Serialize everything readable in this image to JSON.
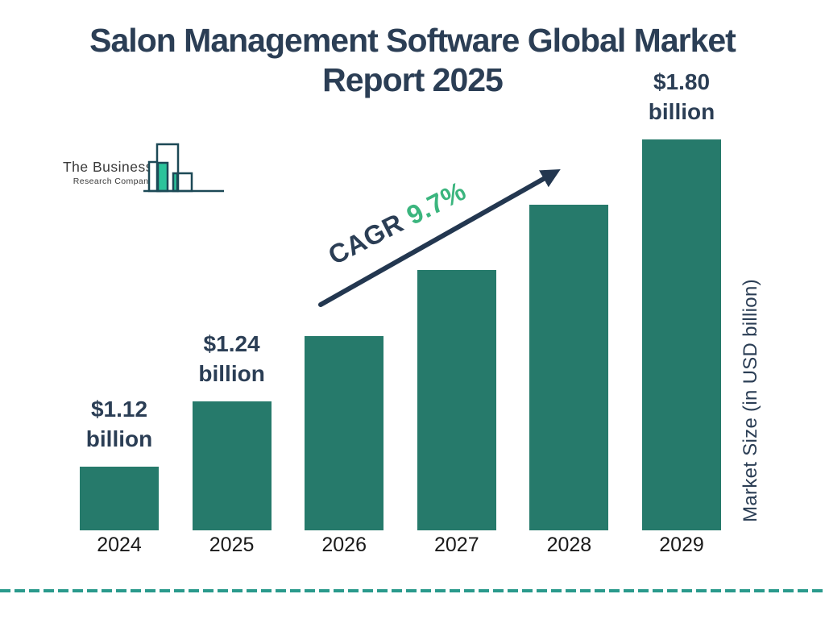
{
  "title": {
    "line1": "Salon Management Software Global Market",
    "line2": "Report 2025"
  },
  "logo": {
    "line1": "The Business",
    "line2": "Research Company"
  },
  "cagr": {
    "label": "CAGR",
    "value": "9.7%"
  },
  "axis": {
    "y_label": "Market Size (in USD billion)"
  },
  "colors": {
    "title_navy": "#2b3e55",
    "bar_teal": "#267a6b",
    "cagr_green": "#3bb57e",
    "arrow_navy": "#233750",
    "dash_teal": "#2a9a8c",
    "year_label_black": "#1a1a1a",
    "logo_outline": "#1c4956",
    "logo_green": "#2cc39b"
  },
  "chart_data": {
    "type": "bar",
    "title": "Salon Management Software Global Market Report 2025",
    "categories": [
      "2024",
      "2025",
      "2026",
      "2027",
      "2028",
      "2029"
    ],
    "values": [
      1.12,
      1.24,
      1.36,
      1.49,
      1.64,
      1.8
    ],
    "value_labels": [
      "$1.12 billion",
      "$1.24 billion",
      null,
      null,
      null,
      "$1.80 billion"
    ],
    "unit": "USD billion",
    "xlabel": "",
    "ylabel": "Market Size (in USD billion)",
    "cagr_annotation": "CAGR 9.7%",
    "legend": false,
    "grid": false,
    "axis_lines": false
  }
}
